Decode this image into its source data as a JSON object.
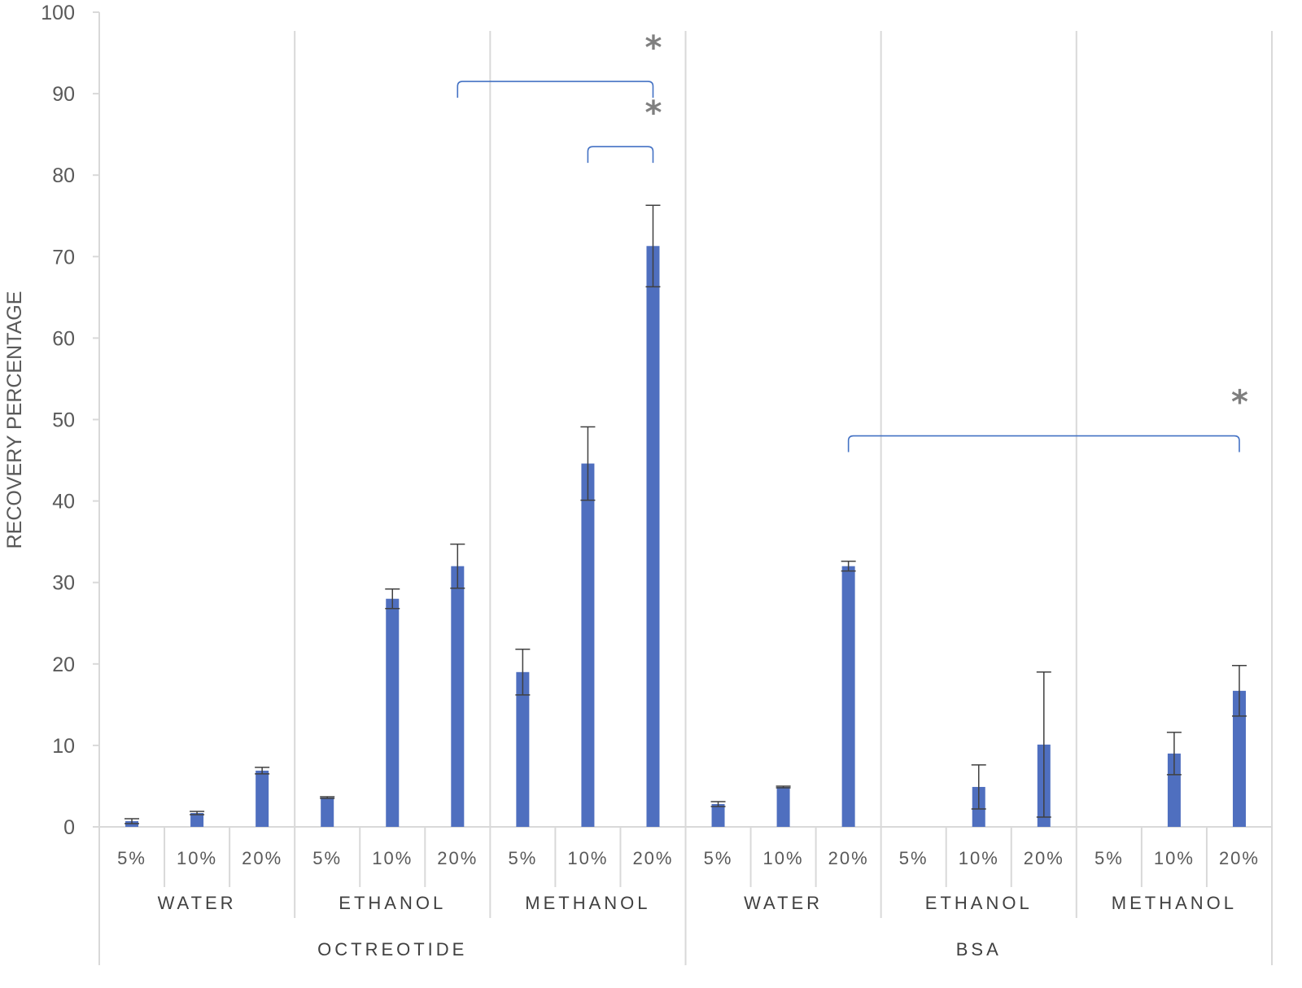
{
  "chart_data": {
    "type": "bar",
    "ylabel": "RECOVERY PERCENTAGE",
    "xlabel": "",
    "ylim": [
      0,
      100
    ],
    "yticks": [
      "0",
      "10",
      "20",
      "30",
      "40",
      "50",
      "60",
      "70",
      "80",
      "90",
      "100"
    ],
    "bar_color": "#4F6FBF",
    "error_color": "#404040",
    "bracket_color": "#4472C4",
    "groups": [
      {
        "name": "OCTREOTIDE",
        "solvents": [
          {
            "name": "WATER",
            "categories": [
              "5%",
              "10%",
              "20%"
            ],
            "values": [
              0.7,
              1.7,
              6.9
            ],
            "errors": [
              0.3,
              0.2,
              0.4
            ]
          },
          {
            "name": "ETHANOL",
            "categories": [
              "5%",
              "10%",
              "20%"
            ],
            "values": [
              3.6,
              28.0,
              32.0
            ],
            "errors": [
              0.1,
              1.2,
              2.7
            ]
          },
          {
            "name": "METHANOL",
            "categories": [
              "5%",
              "10%",
              "20%"
            ],
            "values": [
              19.0,
              44.6,
              71.3
            ],
            "errors": [
              2.8,
              4.5,
              5.0
            ]
          }
        ]
      },
      {
        "name": "BSA",
        "solvents": [
          {
            "name": "WATER",
            "categories": [
              "5%",
              "10%",
              "20%"
            ],
            "values": [
              2.8,
              4.9,
              32.0
            ],
            "errors": [
              0.3,
              0.1,
              0.6
            ]
          },
          {
            "name": "ETHANOL",
            "categories": [
              "5%",
              "10%",
              "20%"
            ],
            "values": [
              0,
              4.9,
              10.1
            ],
            "errors": [
              0,
              2.7,
              8.9
            ]
          },
          {
            "name": "METHANOL",
            "categories": [
              "5%",
              "10%",
              "20%"
            ],
            "values": [
              0,
              9.0,
              16.7
            ],
            "errors": [
              0,
              2.6,
              3.1
            ]
          }
        ]
      }
    ],
    "significance": [
      {
        "from_bar": 5,
        "to_bar": 8,
        "y": 91.5,
        "label": "*"
      },
      {
        "from_bar": 7,
        "to_bar": 8,
        "y": 83.5,
        "label": "*"
      },
      {
        "from_bar": 11,
        "to_bar": 17,
        "y": 48,
        "label": "*"
      }
    ]
  }
}
